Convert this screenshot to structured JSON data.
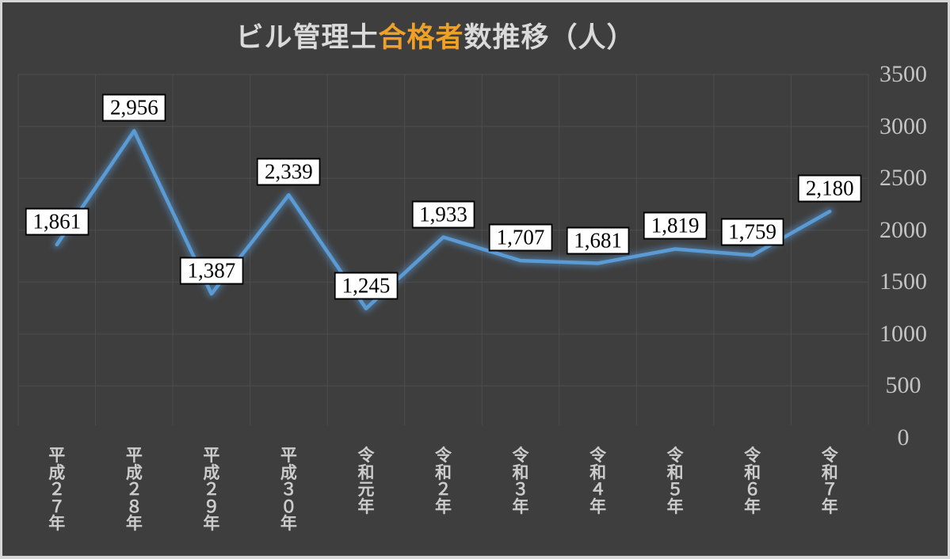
{
  "title": {
    "part1": "ビル管理士",
    "highlight": "合格者",
    "part2": "数推移（人）"
  },
  "colors": {
    "background": "#3E3E3E",
    "frame_border": "#D6D6D6",
    "gridline": "#4D4D4D",
    "line": "#5B9BD5",
    "title_text": "#DADADA",
    "title_highlight": "#EFA127",
    "y_axis_text": "#C4C4C4",
    "x_axis_text": "#CCCCCC",
    "data_label_bg": "#FFFFFF",
    "data_label_border": "#000000",
    "data_label_text": "#000000"
  },
  "chart_data": {
    "type": "line",
    "title": "ビル管理士合格者数推移（人）",
    "categories": [
      "平成２７年",
      "平成２８年",
      "平成２９年",
      "平成３０年",
      "令和元年",
      "令和２年",
      "令和３年",
      "令和４年",
      "令和５年",
      "令和６年",
      "令和７年"
    ],
    "values": [
      1861,
      2956,
      1387,
      2339,
      1245,
      1933,
      1707,
      1681,
      1819,
      1759,
      2180
    ],
    "data_labels": [
      "1,861",
      "2,956",
      "1,387",
      "2,339",
      "1,245",
      "1,933",
      "1,707",
      "1,681",
      "1,819",
      "1,759",
      "2,180"
    ],
    "xlabel": "",
    "ylabel": "",
    "ylim": [
      0,
      3500
    ],
    "yticks": [
      0,
      500,
      1000,
      1500,
      2000,
      2500,
      3000,
      3500
    ],
    "ytick_side": "right",
    "grid": true,
    "legend": "none",
    "markers": "none"
  }
}
